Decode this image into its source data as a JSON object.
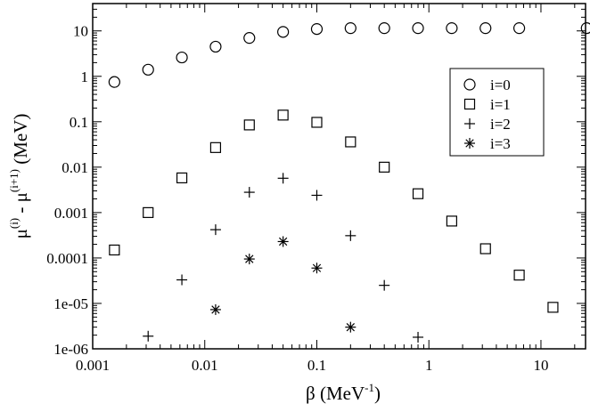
{
  "chart_data": {
    "type": "scatter",
    "title": "",
    "xlabel": {
      "symbol": "β",
      "open": " (MeV",
      "exp": "-1",
      "close": ")"
    },
    "ylabel": {
      "mu1": "μ",
      "sup1": "(i)",
      "dash": " - ",
      "mu2": "μ",
      "sup2": "(i+1)",
      "unit": " (MeV)"
    },
    "x_scale": "log",
    "y_scale": "log",
    "xlim": [
      0.001,
      25
    ],
    "ylim": [
      1e-06,
      40
    ],
    "x_ticks": [
      {
        "value": 0.001,
        "label": "0.001"
      },
      {
        "value": 0.01,
        "label": "0.01"
      },
      {
        "value": 0.1,
        "label": "0.1"
      },
      {
        "value": 1,
        "label": "1"
      },
      {
        "value": 10,
        "label": "10"
      }
    ],
    "y_ticks": [
      {
        "value": 1e-06,
        "label": "1e-06"
      },
      {
        "value": 1e-05,
        "label": "1e-05"
      },
      {
        "value": 0.0001,
        "label": "0.0001"
      },
      {
        "value": 0.001,
        "label": "0.001"
      },
      {
        "value": 0.01,
        "label": "0.01"
      },
      {
        "value": 0.1,
        "label": "0.1"
      },
      {
        "value": 1,
        "label": "1"
      },
      {
        "value": 10,
        "label": "10"
      }
    ],
    "grid": false,
    "legend_position": "top-right",
    "series": [
      {
        "name": "i=0",
        "marker": "circle",
        "x": [
          0.0015625,
          0.003125,
          0.00625,
          0.0125,
          0.025,
          0.05,
          0.1,
          0.2,
          0.4,
          0.8,
          1.6,
          3.2,
          6.4,
          25.6
        ],
        "y": [
          0.75,
          1.4,
          2.6,
          4.5,
          7.0,
          9.5,
          11.0,
          11.5,
          11.5,
          11.5,
          11.5,
          11.5,
          11.5,
          11.5
        ]
      },
      {
        "name": "i=1",
        "marker": "square",
        "x": [
          0.0015625,
          0.003125,
          0.00625,
          0.0125,
          0.025,
          0.05,
          0.1,
          0.2,
          0.4,
          0.8,
          1.6,
          3.2,
          6.4,
          12.8
        ],
        "y": [
          0.00015,
          0.001,
          0.0058,
          0.027,
          0.085,
          0.14,
          0.097,
          0.036,
          0.01,
          0.0026,
          0.00065,
          0.00016,
          4.2e-05,
          8.2e-06
        ]
      },
      {
        "name": "i=2",
        "marker": "plus",
        "x": [
          0.003125,
          0.00625,
          0.0125,
          0.025,
          0.05,
          0.1,
          0.2,
          0.4,
          0.8
        ],
        "y": [
          1.9e-06,
          3.3e-05,
          0.00042,
          0.0028,
          0.0057,
          0.0024,
          0.00031,
          2.5e-05,
          1.8e-06
        ]
      },
      {
        "name": "i=3",
        "marker": "asterisk",
        "x": [
          0.0125,
          0.025,
          0.05,
          0.1,
          0.2
        ],
        "y": [
          7.3e-06,
          9.5e-05,
          0.00023,
          6e-05,
          3e-06
        ]
      }
    ]
  }
}
